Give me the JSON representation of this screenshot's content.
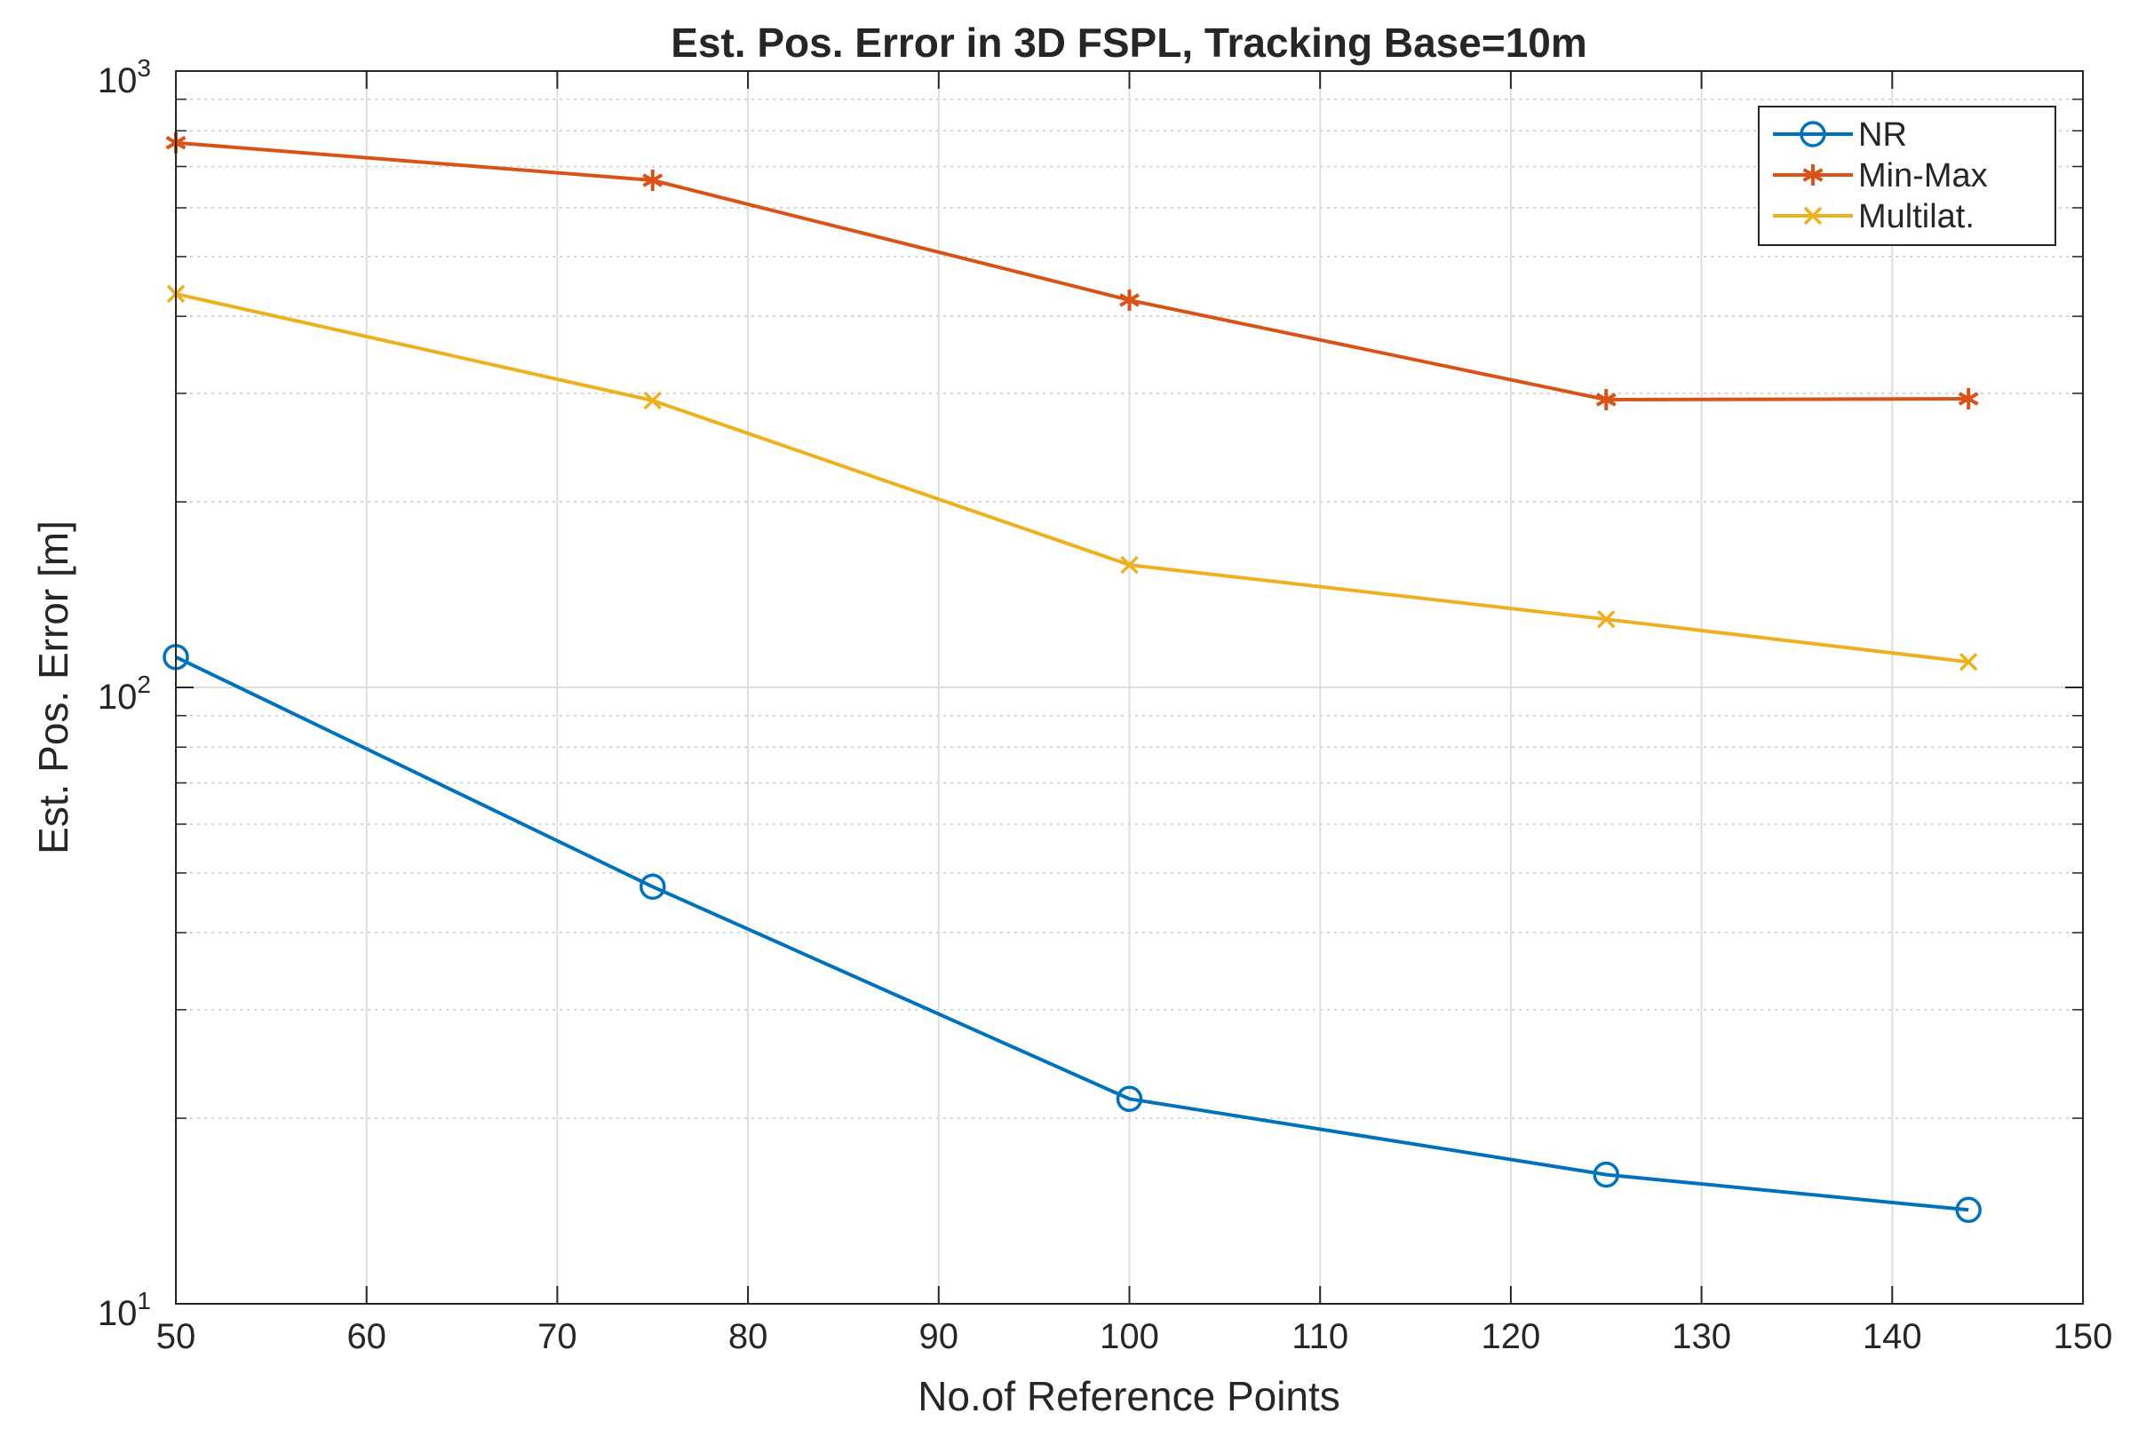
{
  "chart_data": {
    "type": "line",
    "title": "Est. Pos. Error in 3D FSPL, Tracking Base=10m",
    "xlabel": "No.of Reference Points",
    "ylabel": "Est. Pos. Error [m]",
    "xlim": [
      50,
      150
    ],
    "ylim": [
      10,
      1000
    ],
    "yscale": "log",
    "grid": true,
    "minor_grid": true,
    "xticks": [
      50,
      60,
      70,
      80,
      90,
      100,
      110,
      120,
      130,
      140,
      150
    ],
    "xtick_labels": [
      "50",
      "60",
      "70",
      "80",
      "90",
      "100",
      "110",
      "120",
      "130",
      "140",
      "150"
    ],
    "yticks": [
      {
        "value": 10,
        "base": "10",
        "exp": "1"
      },
      {
        "value": 100,
        "base": "10",
        "exp": "2"
      },
      {
        "value": 1000,
        "base": "10",
        "exp": "3"
      }
    ],
    "x": [
      50,
      75,
      100,
      125,
      144
    ],
    "series": [
      {
        "name": "NR",
        "values": [
          112,
          47.5,
          21.5,
          16.2,
          14.2
        ],
        "color": "#0072BD",
        "marker": "circle"
      },
      {
        "name": "Min-Max",
        "values": [
          765,
          665,
          425,
          293,
          294
        ],
        "color": "#D95319",
        "marker": "asterisk"
      },
      {
        "name": "Multilat.",
        "values": [
          435,
          292,
          158,
          129,
          110
        ],
        "color": "#EDB120",
        "marker": "x"
      }
    ],
    "legend_position": "top-right"
  }
}
